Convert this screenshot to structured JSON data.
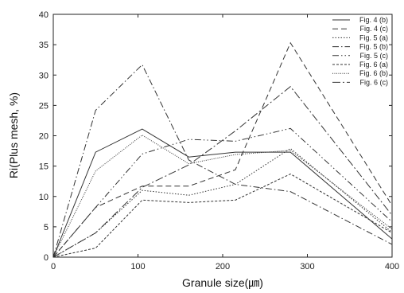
{
  "chart_data": {
    "type": "line",
    "title": "",
    "xlabel": "Granule size(㎛)",
    "ylabel": "Ri(Plus mesh, %)",
    "xlim": [
      0,
      400
    ],
    "ylim": [
      0,
      40
    ],
    "xticks": [
      0,
      100,
      200,
      300,
      400
    ],
    "yticks": [
      0,
      5,
      10,
      15,
      20,
      25,
      30,
      35,
      40
    ],
    "grid": false,
    "legend_position": "top-right",
    "x": [
      0,
      50,
      105,
      160,
      215,
      280,
      400
    ],
    "series": [
      {
        "name": "Fig. 4 (b)",
        "dash": "",
        "values": [
          0,
          17.3,
          21.1,
          16.5,
          17.3,
          17.3,
          3.0
        ]
      },
      {
        "name": "Fig. 4 (c)",
        "dash": "7,4",
        "values": [
          0,
          8.2,
          11.7,
          11.7,
          14.4,
          35.3,
          8.5
        ]
      },
      {
        "name": "Fig. 5 (a)",
        "dash": "1.5,2",
        "values": [
          0,
          4.0,
          11.0,
          10.2,
          12.0,
          17.9,
          4.1
        ]
      },
      {
        "name": "Fig. 5 (b)",
        "dash": "8,3,1.5,3",
        "values": [
          0,
          24.2,
          31.7,
          16.0,
          12.0,
          10.8,
          2.1
        ]
      },
      {
        "name": "Fig. 5 (c)",
        "dash": "8,3,1.5,3,1.5,3",
        "values": [
          0,
          8.2,
          17.0,
          19.4,
          19.1,
          21.2,
          5.8
        ]
      },
      {
        "name": "Fig. 6 (a)",
        "dash": "3,2",
        "values": [
          0,
          1.5,
          9.4,
          9.0,
          9.4,
          13.7,
          4.0
        ]
      },
      {
        "name": "Fig. 6 (b)",
        "dash": "1,1.5",
        "values": [
          0,
          14.2,
          20.1,
          15.4,
          16.9,
          17.6,
          4.6
        ]
      },
      {
        "name": "Fig. 6 (c)",
        "dash": "10,3,2,3",
        "values": [
          0,
          4.0,
          11.5,
          15.2,
          20.8,
          28.1,
          6.9
        ]
      }
    ]
  }
}
